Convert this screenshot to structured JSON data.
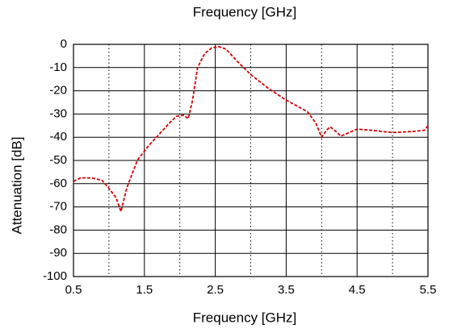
{
  "chart_data": {
    "type": "line",
    "title": "Frequency [GHz]",
    "x_label": "Frequency [GHz]",
    "y_label": "Attenuation [dB]",
    "xlim": [
      0.5,
      5.5
    ],
    "xticks": [
      0.5,
      1.5,
      2.5,
      3.5,
      4.5,
      5.5
    ],
    "xminor_ticks": [
      1,
      2,
      3,
      4,
      5
    ],
    "ylim": [
      -100,
      0
    ],
    "yticks": [
      0,
      -10,
      -20,
      -30,
      -40,
      -50,
      -60,
      -70,
      -80,
      -90,
      -100
    ],
    "grid": true,
    "series": [
      {
        "color": "#d40000",
        "x": [
          0.5,
          0.6,
          0.75,
          0.9,
          1.0,
          1.1,
          1.17,
          1.25,
          1.4,
          1.55,
          1.7,
          1.85,
          1.95,
          2.05,
          2.12,
          2.18,
          2.25,
          2.35,
          2.45,
          2.55,
          2.65,
          2.8,
          3.0,
          3.25,
          3.5,
          3.8,
          3.92,
          4.0,
          4.07,
          4.12,
          4.2,
          4.27,
          4.35,
          4.5,
          4.7,
          5.0,
          5.3,
          5.45,
          5.5
        ],
        "values": [
          -59,
          -57.5,
          -57.5,
          -58.5,
          -62,
          -66,
          -72,
          -62,
          -50,
          -44,
          -39,
          -34,
          -31,
          -30.5,
          -32,
          -24,
          -10,
          -4,
          -1.5,
          -1,
          -2,
          -7,
          -13,
          -19,
          -24,
          -29,
          -34,
          -40,
          -37,
          -35.5,
          -37.5,
          -39.5,
          -38.5,
          -36.5,
          -37,
          -38,
          -37.5,
          -37,
          -35
        ]
      }
    ]
  }
}
